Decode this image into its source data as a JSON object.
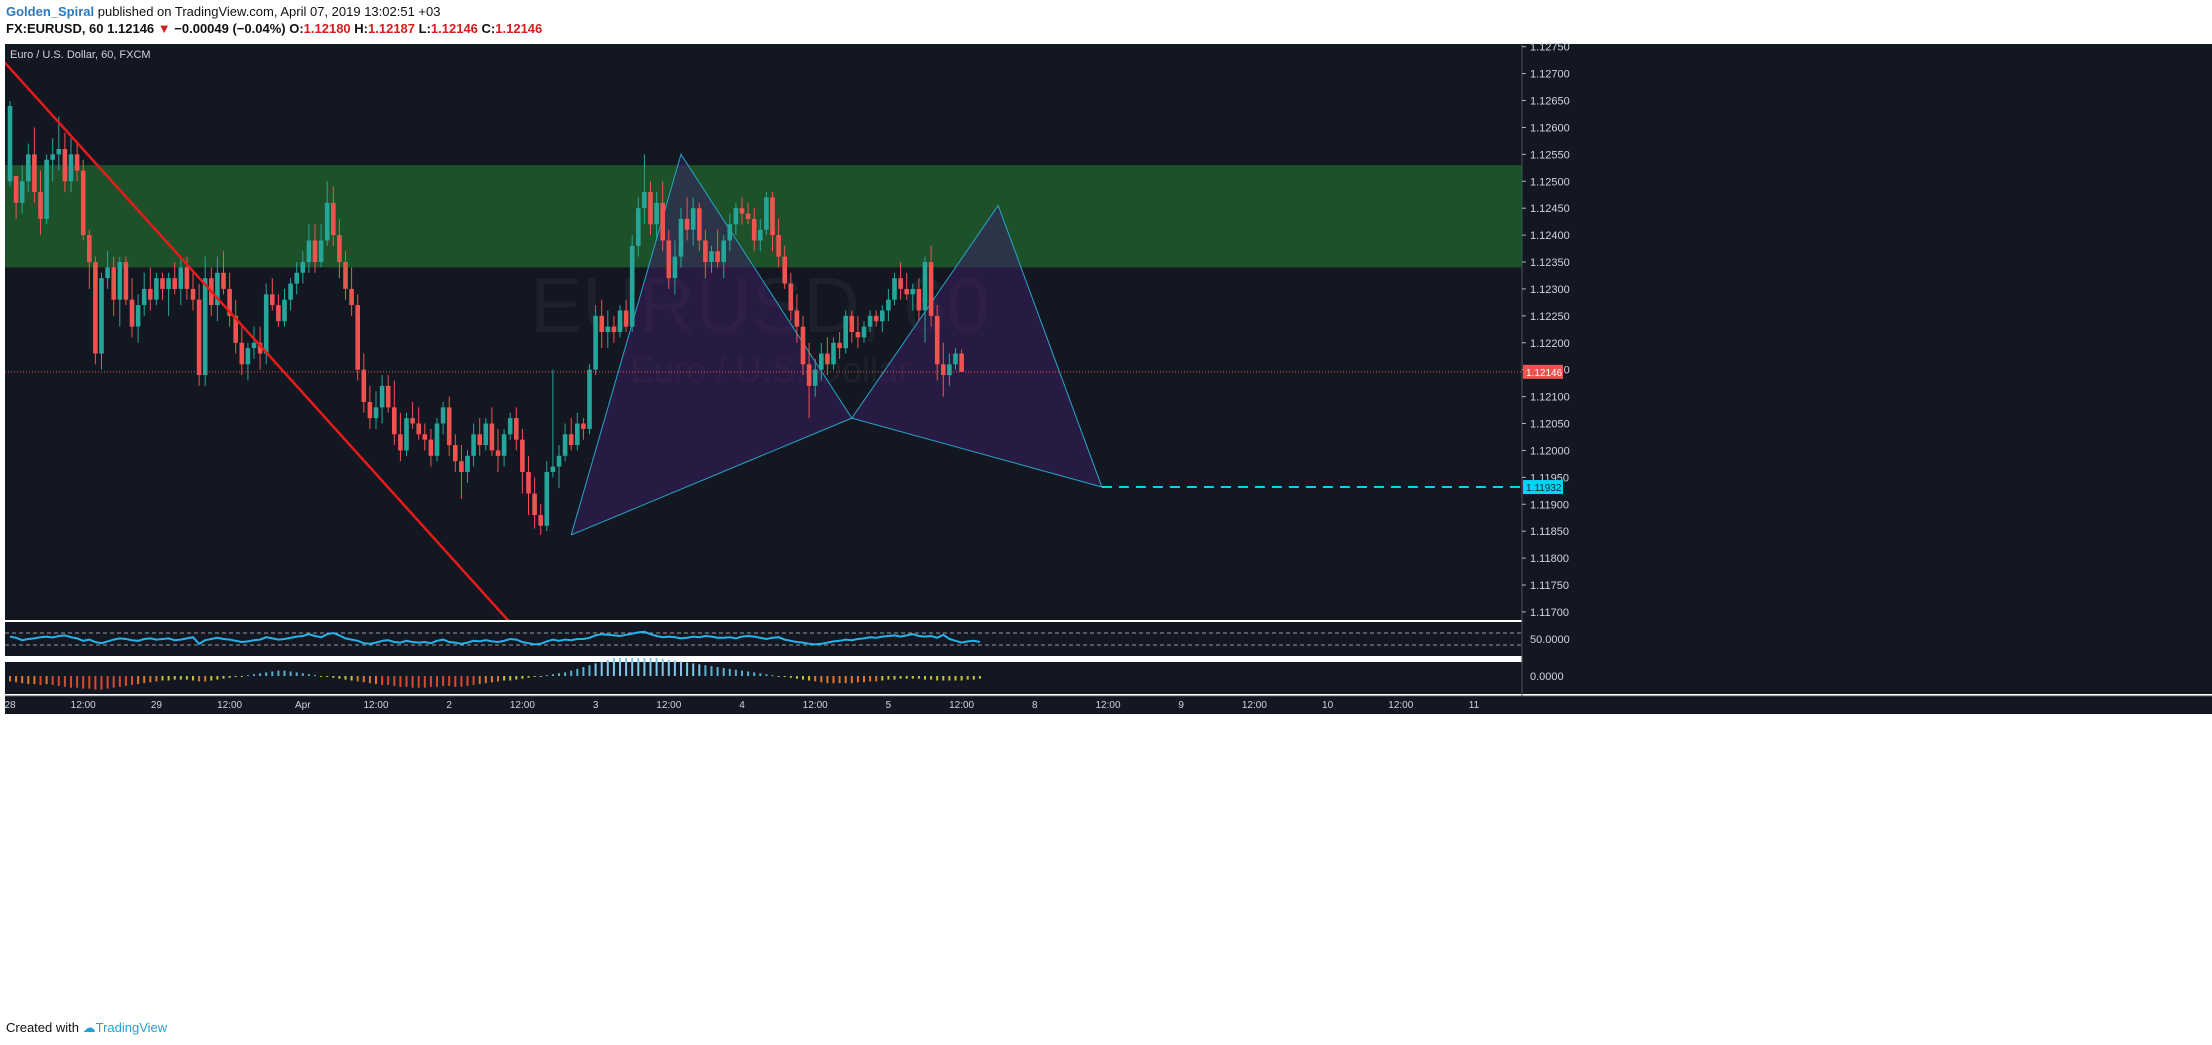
{
  "header": {
    "author": "Golden_Spiral",
    "published_text": "published on TradingView.com, April 07, 2019 13:02:51 +03",
    "symbol": "FX:EURUSD, 60",
    "last_price": "1.12146",
    "change_arrow": "▼",
    "change": "−0.00049 (−0.04%)",
    "o_label": "O:",
    "o_value": "1.12180",
    "h_label": "H:",
    "h_value": "1.12187",
    "l_label": "L:",
    "l_value": "1.12146",
    "c_label": "C:",
    "c_value": "1.12146"
  },
  "footer": {
    "created_with": "Created with",
    "brand": "TradingView"
  },
  "chart_data": {
    "type": "candlestick",
    "title": "Euro / U.S. Dollar, 60, FXCM",
    "watermark_symbol": "EURUSD, 60",
    "watermark_desc": "Euro / U.S. Dollar",
    "y_ticks": [
      "1.12750",
      "1.12700",
      "1.12650",
      "1.12600",
      "1.12550",
      "1.12500",
      "1.12450",
      "1.12400",
      "1.12350",
      "1.12300",
      "1.12250",
      "1.12200",
      "1.12150",
      "1.12100",
      "1.12050",
      "1.12000",
      "1.11950",
      "1.11900",
      "1.11850",
      "1.11800",
      "1.11750",
      "1.11700"
    ],
    "ylim": [
      1.11685,
      1.12755
    ],
    "x_ticks": [
      {
        "label": "28",
        "x": 0
      },
      {
        "label": "12:00",
        "x": 12
      },
      {
        "label": "29",
        "x": 24
      },
      {
        "label": "12:00",
        "x": 36
      },
      {
        "label": "Apr",
        "x": 48
      },
      {
        "label": "12:00",
        "x": 60
      },
      {
        "label": "2",
        "x": 72
      },
      {
        "label": "12:00",
        "x": 84
      },
      {
        "label": "3",
        "x": 96
      },
      {
        "label": "12:00",
        "x": 108
      },
      {
        "label": "4",
        "x": 120
      },
      {
        "label": "12:00",
        "x": 132
      },
      {
        "label": "5",
        "x": 144
      },
      {
        "label": "12:00",
        "x": 156
      },
      {
        "label": "8",
        "x": 168
      },
      {
        "label": "12:00",
        "x": 180
      },
      {
        "label": "9",
        "x": 192
      },
      {
        "label": "12:00",
        "x": 204
      },
      {
        "label": "10",
        "x": 216
      },
      {
        "label": "12:00",
        "x": 228
      },
      {
        "label": "11",
        "x": 240
      }
    ],
    "last_price": 1.12146,
    "last_price_label": "1.12146",
    "target_price": 1.11932,
    "target_price_label": "1.11932",
    "resistance_zone": [
      1.1234,
      1.1253
    ],
    "trendline": {
      "from": [
        -4,
        1.1276
      ],
      "to": [
        82,
        1.1168
      ]
    },
    "harmonic_pattern": {
      "points": [
        [
          92,
          1.11843
        ],
        [
          110,
          1.1255
        ],
        [
          138,
          1.1206
        ],
        [
          162,
          1.12455
        ],
        [
          179,
          1.11932
        ]
      ]
    },
    "candles": [
      [
        1.125,
        1.12649,
        1.1249,
        1.1264
      ],
      [
        1.1251,
        1.1251,
        1.1243,
        1.1246
      ],
      [
        1.1246,
        1.1253,
        1.1244,
        1.125
      ],
      [
        1.125,
        1.1257,
        1.1248,
        1.1255
      ],
      [
        1.1255,
        1.126,
        1.1246,
        1.1248
      ],
      [
        1.1248,
        1.1252,
        1.124,
        1.1243
      ],
      [
        1.1243,
        1.1255,
        1.1242,
        1.1254
      ],
      [
        1.1254,
        1.1258,
        1.125,
        1.1255
      ],
      [
        1.1255,
        1.1262,
        1.1252,
        1.1256
      ],
      [
        1.1256,
        1.1259,
        1.1248,
        1.125
      ],
      [
        1.125,
        1.1258,
        1.1248,
        1.1255
      ],
      [
        1.1255,
        1.1257,
        1.125,
        1.1252
      ],
      [
        1.1252,
        1.1254,
        1.1239,
        1.124
      ],
      [
        1.124,
        1.1241,
        1.123,
        1.1235
      ],
      [
        1.1235,
        1.1236,
        1.1216,
        1.1218
      ],
      [
        1.1218,
        1.1233,
        1.1215,
        1.1232
      ],
      [
        1.1232,
        1.1237,
        1.123,
        1.1234
      ],
      [
        1.1234,
        1.1236,
        1.1225,
        1.1228
      ],
      [
        1.1228,
        1.1236,
        1.1223,
        1.1235
      ],
      [
        1.1235,
        1.1236,
        1.1227,
        1.1228
      ],
      [
        1.1228,
        1.1232,
        1.1221,
        1.1223
      ],
      [
        1.1223,
        1.1229,
        1.122,
        1.1227
      ],
      [
        1.1227,
        1.1233,
        1.1225,
        1.123
      ],
      [
        1.123,
        1.1234,
        1.1226,
        1.1228
      ],
      [
        1.1228,
        1.1233,
        1.1227,
        1.1232
      ],
      [
        1.1232,
        1.1233,
        1.1228,
        1.123
      ],
      [
        1.123,
        1.1233,
        1.1225,
        1.1232
      ],
      [
        1.1232,
        1.1235,
        1.1229,
        1.123
      ],
      [
        1.123,
        1.1236,
        1.1227,
        1.1234
      ],
      [
        1.1234,
        1.1236,
        1.1228,
        1.123
      ],
      [
        1.123,
        1.1233,
        1.1226,
        1.1228
      ],
      [
        1.1228,
        1.1231,
        1.1212,
        1.1214
      ],
      [
        1.1214,
        1.1236,
        1.1212,
        1.1232
      ],
      [
        1.1232,
        1.1234,
        1.1225,
        1.1227
      ],
      [
        1.1227,
        1.1236,
        1.1224,
        1.1233
      ],
      [
        1.1233,
        1.1237,
        1.1229,
        1.123
      ],
      [
        1.123,
        1.1233,
        1.1223,
        1.1225
      ],
      [
        1.1225,
        1.1228,
        1.1218,
        1.122
      ],
      [
        1.122,
        1.1223,
        1.1214,
        1.1216
      ],
      [
        1.1216,
        1.122,
        1.1213,
        1.1219
      ],
      [
        1.1219,
        1.1223,
        1.1217,
        1.122
      ],
      [
        1.122,
        1.1223,
        1.1215,
        1.1218
      ],
      [
        1.1218,
        1.1231,
        1.1216,
        1.1229
      ],
      [
        1.1229,
        1.1232,
        1.1226,
        1.1227
      ],
      [
        1.1227,
        1.1229,
        1.1223,
        1.1224
      ],
      [
        1.1224,
        1.123,
        1.1223,
        1.1228
      ],
      [
        1.1228,
        1.1232,
        1.1226,
        1.1231
      ],
      [
        1.1231,
        1.1235,
        1.1229,
        1.1233
      ],
      [
        1.1233,
        1.1237,
        1.1231,
        1.1235
      ],
      [
        1.1235,
        1.1242,
        1.1233,
        1.1239
      ],
      [
        1.1239,
        1.1242,
        1.1233,
        1.1235
      ],
      [
        1.1235,
        1.1242,
        1.1234,
        1.1239
      ],
      [
        1.1239,
        1.125,
        1.1238,
        1.1246
      ],
      [
        1.1246,
        1.1249,
        1.1238,
        1.124
      ],
      [
        1.124,
        1.1243,
        1.1232,
        1.1235
      ],
      [
        1.1235,
        1.1237,
        1.1228,
        1.123
      ],
      [
        1.123,
        1.1234,
        1.1225,
        1.1227
      ],
      [
        1.1227,
        1.1229,
        1.1213,
        1.1215
      ],
      [
        1.1215,
        1.1218,
        1.1207,
        1.1209
      ],
      [
        1.1209,
        1.1212,
        1.1204,
        1.1206
      ],
      [
        1.1206,
        1.1211,
        1.1204,
        1.1208
      ],
      [
        1.1208,
        1.1214,
        1.1205,
        1.1212
      ],
      [
        1.1212,
        1.1214,
        1.1207,
        1.1208
      ],
      [
        1.1208,
        1.1213,
        1.1201,
        1.1203
      ],
      [
        1.1203,
        1.1207,
        1.1198,
        1.12
      ],
      [
        1.12,
        1.1207,
        1.1199,
        1.1206
      ],
      [
        1.1206,
        1.1209,
        1.1204,
        1.1205
      ],
      [
        1.1205,
        1.1208,
        1.1202,
        1.1203
      ],
      [
        1.1203,
        1.1205,
        1.12,
        1.1202
      ],
      [
        1.1202,
        1.1204,
        1.1197,
        1.1199
      ],
      [
        1.1199,
        1.1206,
        1.1198,
        1.1205
      ],
      [
        1.1205,
        1.1209,
        1.1203,
        1.1208
      ],
      [
        1.1208,
        1.121,
        1.1199,
        1.1201
      ],
      [
        1.1201,
        1.1203,
        1.1196,
        1.1198
      ],
      [
        1.1198,
        1.1201,
        1.1191,
        1.1196
      ],
      [
        1.1196,
        1.12,
        1.1194,
        1.1199
      ],
      [
        1.1199,
        1.1205,
        1.1197,
        1.1203
      ],
      [
        1.1203,
        1.1206,
        1.1199,
        1.1201
      ],
      [
        1.1201,
        1.1206,
        1.12,
        1.1205
      ],
      [
        1.1205,
        1.1208,
        1.1199,
        1.12
      ],
      [
        1.12,
        1.1204,
        1.1196,
        1.1199
      ],
      [
        1.1199,
        1.1204,
        1.1197,
        1.1203
      ],
      [
        1.1203,
        1.1207,
        1.1202,
        1.1206
      ],
      [
        1.1206,
        1.1208,
        1.12,
        1.1202
      ],
      [
        1.1202,
        1.1204,
        1.1192,
        1.1196
      ],
      [
        1.1196,
        1.1199,
        1.1188,
        1.1192
      ],
      [
        1.1192,
        1.1195,
        1.11855,
        1.1188
      ],
      [
        1.1188,
        1.119,
        1.11843,
        1.1186
      ],
      [
        1.1186,
        1.1198,
        1.1185,
        1.1196
      ],
      [
        1.1196,
        1.1215,
        1.1195,
        1.1197
      ],
      [
        1.1197,
        1.1201,
        1.1193,
        1.1199
      ],
      [
        1.1199,
        1.1205,
        1.1198,
        1.1203
      ],
      [
        1.1203,
        1.1206,
        1.12,
        1.1201
      ],
      [
        1.1201,
        1.1207,
        1.12,
        1.1205
      ],
      [
        1.1205,
        1.1206,
        1.1202,
        1.1204
      ],
      [
        1.1204,
        1.1216,
        1.1203,
        1.1215
      ],
      [
        1.1215,
        1.1227,
        1.1214,
        1.1225
      ],
      [
        1.1225,
        1.1228,
        1.1219,
        1.1222
      ],
      [
        1.1222,
        1.1226,
        1.1219,
        1.1223
      ],
      [
        1.1223,
        1.1225,
        1.122,
        1.1222
      ],
      [
        1.1222,
        1.1227,
        1.1221,
        1.1226
      ],
      [
        1.1226,
        1.1228,
        1.1222,
        1.1223
      ],
      [
        1.1223,
        1.124,
        1.1222,
        1.1238
      ],
      [
        1.1238,
        1.1247,
        1.1236,
        1.1245
      ],
      [
        1.1245,
        1.1255,
        1.1242,
        1.1248
      ],
      [
        1.1248,
        1.125,
        1.124,
        1.1242
      ],
      [
        1.1242,
        1.1248,
        1.1239,
        1.1246
      ],
      [
        1.1246,
        1.125,
        1.1237,
        1.1239
      ],
      [
        1.1239,
        1.1241,
        1.123,
        1.1232
      ],
      [
        1.1232,
        1.1239,
        1.1229,
        1.1236
      ],
      [
        1.1236,
        1.1245,
        1.1234,
        1.1243
      ],
      [
        1.1243,
        1.1247,
        1.1239,
        1.1241
      ],
      [
        1.1241,
        1.1247,
        1.1238,
        1.1245
      ],
      [
        1.1245,
        1.1246,
        1.1237,
        1.1239
      ],
      [
        1.1239,
        1.1241,
        1.1232,
        1.1235
      ],
      [
        1.1235,
        1.1238,
        1.1233,
        1.1237
      ],
      [
        1.1237,
        1.1241,
        1.1234,
        1.1235
      ],
      [
        1.1235,
        1.124,
        1.1232,
        1.1239
      ],
      [
        1.1239,
        1.1244,
        1.1237,
        1.1242
      ],
      [
        1.1242,
        1.1246,
        1.124,
        1.1245
      ],
      [
        1.1245,
        1.1247,
        1.1242,
        1.1244
      ],
      [
        1.1244,
        1.1246,
        1.1242,
        1.1243
      ],
      [
        1.1243,
        1.1245,
        1.1237,
        1.1239
      ],
      [
        1.1239,
        1.1243,
        1.1237,
        1.1241
      ],
      [
        1.1241,
        1.1248,
        1.124,
        1.1247
      ],
      [
        1.1247,
        1.1248,
        1.1237,
        1.124
      ],
      [
        1.124,
        1.1243,
        1.1234,
        1.1236
      ],
      [
        1.1236,
        1.1238,
        1.123,
        1.1231
      ],
      [
        1.1231,
        1.1233,
        1.1224,
        1.1226
      ],
      [
        1.1226,
        1.1229,
        1.122,
        1.1223
      ],
      [
        1.1223,
        1.1225,
        1.1214,
        1.1216
      ],
      [
        1.1216,
        1.122,
        1.1206,
        1.1212
      ],
      [
        1.1212,
        1.1217,
        1.121,
        1.1215
      ],
      [
        1.1215,
        1.122,
        1.1213,
        1.1218
      ],
      [
        1.1218,
        1.1221,
        1.1214,
        1.1216
      ],
      [
        1.1216,
        1.1221,
        1.1215,
        1.122
      ],
      [
        1.122,
        1.1222,
        1.1217,
        1.1219
      ],
      [
        1.1219,
        1.1226,
        1.1218,
        1.1225
      ],
      [
        1.1225,
        1.1226,
        1.122,
        1.1222
      ],
      [
        1.1222,
        1.1225,
        1.1219,
        1.1221
      ],
      [
        1.1221,
        1.1224,
        1.122,
        1.1223
      ],
      [
        1.1223,
        1.1226,
        1.1222,
        1.1225
      ],
      [
        1.1225,
        1.1226,
        1.1223,
        1.1224
      ],
      [
        1.1224,
        1.1227,
        1.1222,
        1.1226
      ],
      [
        1.1226,
        1.123,
        1.1224,
        1.1228
      ],
      [
        1.1228,
        1.1233,
        1.1227,
        1.1232
      ],
      [
        1.1232,
        1.1235,
        1.1228,
        1.123
      ],
      [
        1.123,
        1.1233,
        1.1228,
        1.1229
      ],
      [
        1.1229,
        1.1231,
        1.1226,
        1.123
      ],
      [
        1.123,
        1.1232,
        1.1224,
        1.1226
      ],
      [
        1.1226,
        1.1236,
        1.122,
        1.1235
      ],
      [
        1.1235,
        1.1238,
        1.1223,
        1.1225
      ],
      [
        1.1225,
        1.1227,
        1.1213,
        1.1216
      ],
      [
        1.1216,
        1.122,
        1.121,
        1.1214
      ],
      [
        1.1214,
        1.1218,
        1.1212,
        1.1216
      ],
      [
        1.1216,
        1.1219,
        1.1215,
        1.1218
      ],
      [
        1.1218,
        1.12187,
        1.12146,
        1.12146
      ]
    ],
    "cmo": {
      "label": "50.0000",
      "upper_level": 70,
      "lower_level": 30,
      "range": [
        0,
        100
      ],
      "values": [
        58,
        54,
        46,
        50,
        52,
        56,
        58,
        55,
        60,
        62,
        56,
        52,
        44,
        48,
        40,
        36,
        42,
        48,
        52,
        50,
        46,
        44,
        50,
        52,
        48,
        50,
        52,
        46,
        48,
        52,
        56,
        34,
        46,
        50,
        54,
        50,
        48,
        44,
        40,
        42,
        46,
        48,
        56,
        52,
        48,
        50,
        54,
        58,
        60,
        66,
        60,
        56,
        66,
        70,
        62,
        52,
        48,
        44,
        36,
        34,
        38,
        44,
        46,
        40,
        38,
        44,
        40,
        38,
        40,
        36,
        44,
        48,
        40,
        38,
        34,
        38,
        44,
        42,
        46,
        42,
        40,
        44,
        50,
        48,
        40,
        36,
        32,
        34,
        42,
        48,
        44,
        48,
        46,
        50,
        50,
        54,
        62,
        66,
        64,
        62,
        60,
        64,
        68,
        72,
        74,
        66,
        60,
        56,
        58,
        56,
        52,
        54,
        58,
        56,
        60,
        58,
        54,
        54,
        56,
        52,
        58,
        60,
        58,
        54,
        50,
        54,
        56,
        48,
        44,
        40,
        38,
        34,
        32,
        34,
        38,
        42,
        44,
        48,
        46,
        50,
        52,
        56,
        54,
        58,
        60,
        62,
        58,
        62,
        66,
        60,
        58,
        60,
        54,
        64,
        50,
        44,
        38,
        42,
        44,
        40
      ],
      "histogram": [
        -6,
        -7,
        -8,
        -9,
        -9,
        -10,
        -9,
        -10,
        -11,
        -12,
        -13,
        -13,
        -14,
        -14,
        -15,
        -15,
        -14,
        -13,
        -12,
        -11,
        -10,
        -9,
        -8,
        -7,
        -6,
        -5,
        -5,
        -4,
        -4,
        -4,
        -5,
        -6,
        -6,
        -5,
        -4,
        -3,
        -2,
        -1,
        0,
        1,
        2,
        3,
        4,
        5,
        6,
        6,
        5,
        4,
        3,
        2,
        1,
        0,
        -1,
        -2,
        -3,
        -4,
        -5,
        -6,
        -7,
        -8,
        -9,
        -10,
        -10,
        -11,
        -12,
        -12,
        -13,
        -13,
        -13,
        -12,
        -12,
        -11,
        -11,
        -12,
        -12,
        -11,
        -10,
        -9,
        -8,
        -7,
        -6,
        -5,
        -5,
        -4,
        -3,
        -2,
        -1,
        0,
        1,
        2,
        3,
        4,
        6,
        8,
        10,
        12,
        14,
        16,
        18,
        20,
        20,
        20,
        20,
        20,
        20,
        20,
        20,
        19,
        18,
        17,
        16,
        15,
        14,
        13,
        12,
        11,
        10,
        9,
        8,
        7,
        6,
        5,
        4,
        3,
        2,
        1,
        0,
        -1,
        -2,
        -3,
        -4,
        -5,
        -6,
        -7,
        -8,
        -8,
        -8,
        -8,
        -8,
        -7,
        -7,
        -6,
        -6,
        -5,
        -4,
        -4,
        -3,
        -3,
        -3,
        -3,
        -4,
        -4,
        -5,
        -5,
        -5,
        -5,
        -5,
        -4,
        -4,
        -3
      ],
      "hist_label": "0.0000"
    },
    "colors": {
      "background": "#131722",
      "up": "#26a69a",
      "down": "#ef5350",
      "zone": "#1e5c2c",
      "trendline": "#e81a1a",
      "pattern_line": "#26a6c8",
      "pattern_fill": "#3b1f5e",
      "target": "#00d4f5",
      "cmo_line": "#26b3ea"
    }
  }
}
